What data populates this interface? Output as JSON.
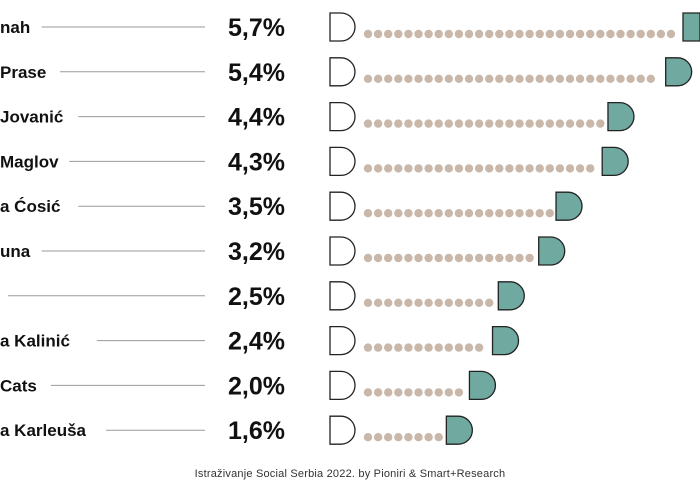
{
  "chart_data": {
    "type": "bar",
    "categories": [
      "nah",
      "Prase",
      "Jovanić",
      "Maglov",
      "a Ćosić",
      "una",
      "",
      "a Kalinić",
      "Cats",
      "a Karleuša"
    ],
    "values": [
      5.7,
      5.4,
      4.4,
      4.3,
      3.5,
      3.2,
      2.5,
      2.4,
      2.0,
      1.6
    ],
    "value_labels": [
      "5,7%",
      "5,4%",
      "4,4%",
      "4,3%",
      "3,5%",
      "3,2%",
      "2,5%",
      "2,4%",
      "2,0%",
      "1,6%"
    ],
    "title": "",
    "xlabel": "",
    "ylabel": "",
    "xlim": [
      0,
      5.7
    ],
    "grid": false,
    "legend": "none"
  },
  "source": "Istraživanje Social Serbia 2022. by Pioniri & Smart+Research",
  "colors": {
    "dot": "#c9b8aa",
    "cap": "#6fa9a0",
    "outline": "#222222",
    "leader_line": "#9a9a9a",
    "text": "#111111"
  }
}
